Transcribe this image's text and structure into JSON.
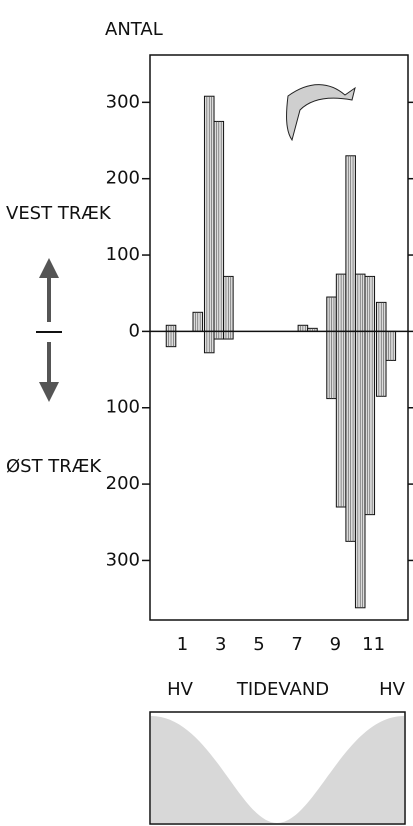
{
  "chart_data": {
    "type": "bar",
    "y_label": "ANTAL",
    "x_label": "TIDEVAND",
    "x_start_label": "HV",
    "x_end_label": "HV",
    "x": [
      0.4,
      1.8,
      2.4,
      2.9,
      3.4,
      7.3,
      7.8,
      8.8,
      9.3,
      9.8,
      10.3,
      10.8,
      11.4,
      11.9
    ],
    "series": [
      {
        "name": "VEST TRÆK",
        "color": "#dcdcdc",
        "values": [
          8,
          25,
          308,
          275,
          72,
          8,
          4,
          45,
          75,
          230,
          75,
          72,
          38,
          null
        ]
      },
      {
        "name": "ØST TRÆK",
        "color": "#dcdcdc",
        "values": [
          -20,
          null,
          -28,
          -10,
          -10,
          null,
          null,
          -88,
          -230,
          -275,
          -362,
          -240,
          -85,
          -38
        ]
      }
    ],
    "xlim": [
      -0.7,
      12.8
    ],
    "xticks": [
      1,
      3,
      5,
      7,
      9,
      11
    ],
    "ylim": [
      -378,
      362
    ],
    "yticks": [
      {
        "value": -300,
        "label": "300"
      },
      {
        "value": -200,
        "label": "200"
      },
      {
        "value": -100,
        "label": "100"
      },
      0,
      100,
      200,
      300
    ],
    "grid": false
  }
}
